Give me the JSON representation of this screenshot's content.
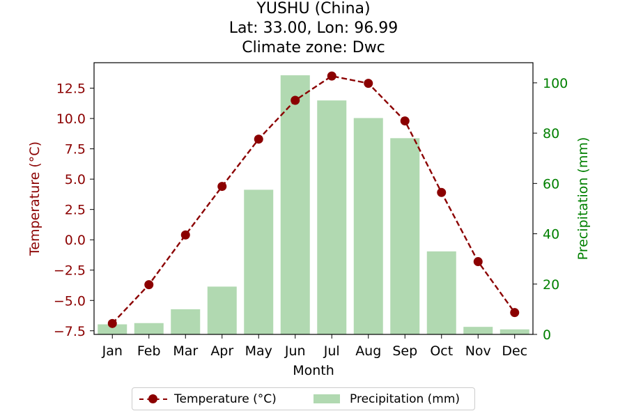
{
  "title": {
    "line1": "YUSHU (China)",
    "line2": "Lat: 33.00, Lon: 96.99",
    "line3": "Climate zone: Dwc"
  },
  "legend": {
    "temperature": "Temperature (°C)",
    "precipitation": "Precipitation (mm)"
  },
  "colors": {
    "temperature": "#8b0000",
    "precipitation_bar": "#b1d9b1",
    "precipitation_axis": "#008000"
  },
  "chart_data": {
    "type": "bar",
    "title": "YUSHU (China)\nLat: 33.00, Lon: 96.99\nClimate zone: Dwc",
    "xlabel": "Month",
    "ylabel_left": "Temperature (°C)",
    "ylabel_right": "Precipitation (mm)",
    "categories": [
      "Jan",
      "Feb",
      "Mar",
      "Apr",
      "May",
      "Jun",
      "Jul",
      "Aug",
      "Sep",
      "Oct",
      "Nov",
      "Dec"
    ],
    "ylim_left": [
      -7.8,
      14.6
    ],
    "ylim_right": [
      0,
      108
    ],
    "yticks_left": [
      "12.5",
      "10.0",
      "7.5",
      "5.0",
      "2.5",
      "0.0",
      "−2.5",
      "−5.0",
      "−7.5"
    ],
    "yticks_left_values": [
      12.5,
      10.0,
      7.5,
      5.0,
      2.5,
      0.0,
      -2.5,
      -5.0,
      -7.5
    ],
    "yticks_right": [
      "100",
      "80",
      "60",
      "40",
      "20",
      "0"
    ],
    "yticks_right_values": [
      100,
      80,
      60,
      40,
      20,
      0
    ],
    "grid": false,
    "legend_position": "bottom-center",
    "series": [
      {
        "name": "Temperature (°C)",
        "type": "line",
        "axis": "left",
        "style": "dashed with circle markers",
        "values": [
          -6.9,
          -3.7,
          0.4,
          4.4,
          8.3,
          11.5,
          13.5,
          12.9,
          9.8,
          3.9,
          -1.8,
          -6.0
        ]
      },
      {
        "name": "Precipitation (mm)",
        "type": "bar",
        "axis": "right",
        "values": [
          4.0,
          4.5,
          10.0,
          19.0,
          57.5,
          103.0,
          93.0,
          86.0,
          78.0,
          33.0,
          3.0,
          2.0
        ]
      }
    ]
  }
}
